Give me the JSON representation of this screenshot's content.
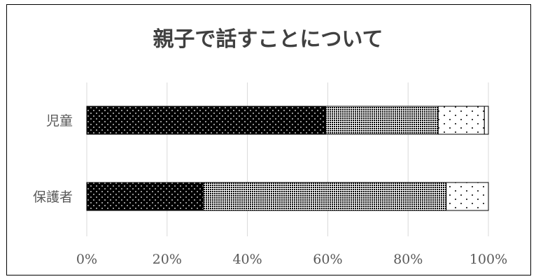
{
  "chart_data": {
    "type": "bar",
    "orientation": "horizontal",
    "stacked": true,
    "percent": true,
    "title": "親子で話すことについて",
    "categories": [
      "児童",
      "保護者"
    ],
    "series": [
      {
        "values": [
          59.5,
          29.0
        ],
        "pattern": "solid-black-with-white-dots"
      },
      {
        "values": [
          28.0,
          60.5
        ],
        "pattern": "dense-black-dots"
      },
      {
        "values": [
          11.5,
          10.5
        ],
        "pattern": "sparse-dots-on-white"
      },
      {
        "values": [
          1.0,
          0.0
        ],
        "pattern": "white"
      }
    ],
    "xlim": [
      0,
      100
    ],
    "x_ticks": [
      "0%",
      "20%",
      "40%",
      "60%",
      "80%",
      "100%"
    ],
    "grid": true,
    "legend": "none"
  }
}
